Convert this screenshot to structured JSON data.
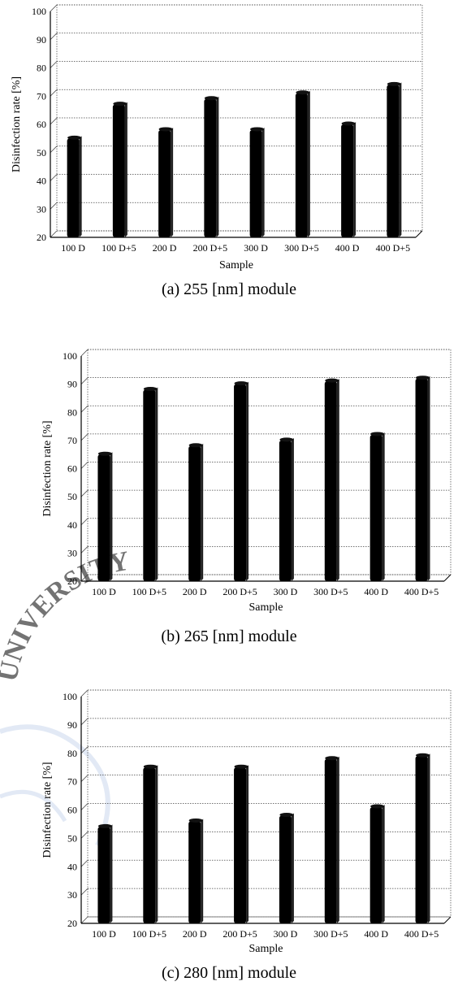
{
  "figure": {
    "watermark_text": "UNIVERSITY"
  },
  "chart_data": [
    {
      "type": "bar",
      "title": "",
      "caption": "(a) 255 [nm] module",
      "xlabel": "Sample",
      "ylabel": "Disinfection rate [%]",
      "ylim": [
        20,
        100
      ],
      "yticks": [
        20,
        30,
        40,
        50,
        60,
        70,
        80,
        90,
        100
      ],
      "grid": true,
      "bar_color": "#000000",
      "categories": [
        "100 D",
        "100 D+5",
        "200 D",
        "200 D+5",
        "300 D",
        "300 D+5",
        "400 D",
        "400 D+5"
      ],
      "values": [
        55,
        67,
        58,
        69,
        58,
        71,
        60,
        74
      ]
    },
    {
      "type": "bar",
      "title": "",
      "caption": "(b) 265 [nm] module",
      "xlabel": "Sample",
      "ylabel": "Disinfection rate [%]",
      "ylim": [
        20,
        100
      ],
      "yticks": [
        20,
        30,
        40,
        50,
        60,
        70,
        80,
        90,
        100
      ],
      "grid": true,
      "bar_color": "#000000",
      "categories": [
        "100 D",
        "100 D+5",
        "200 D",
        "200 D+5",
        "300 D",
        "300 D+5",
        "400 D",
        "400 D+5"
      ],
      "values": [
        65,
        88,
        68,
        90,
        70,
        91,
        72,
        92
      ]
    },
    {
      "type": "bar",
      "title": "",
      "caption": "(c) 280 [nm] module",
      "xlabel": "Sample",
      "ylabel": "Disinfection rate [%]",
      "ylim": [
        20,
        100
      ],
      "yticks": [
        20,
        30,
        40,
        50,
        60,
        70,
        80,
        90,
        100
      ],
      "grid": true,
      "bar_color": "#000000",
      "categories": [
        "100 D",
        "100 D+5",
        "200 D",
        "200 D+5",
        "300 D",
        "300 D+5",
        "400 D",
        "400 D+5"
      ],
      "values": [
        54,
        75,
        56,
        75,
        58,
        78,
        61,
        79
      ]
    }
  ]
}
